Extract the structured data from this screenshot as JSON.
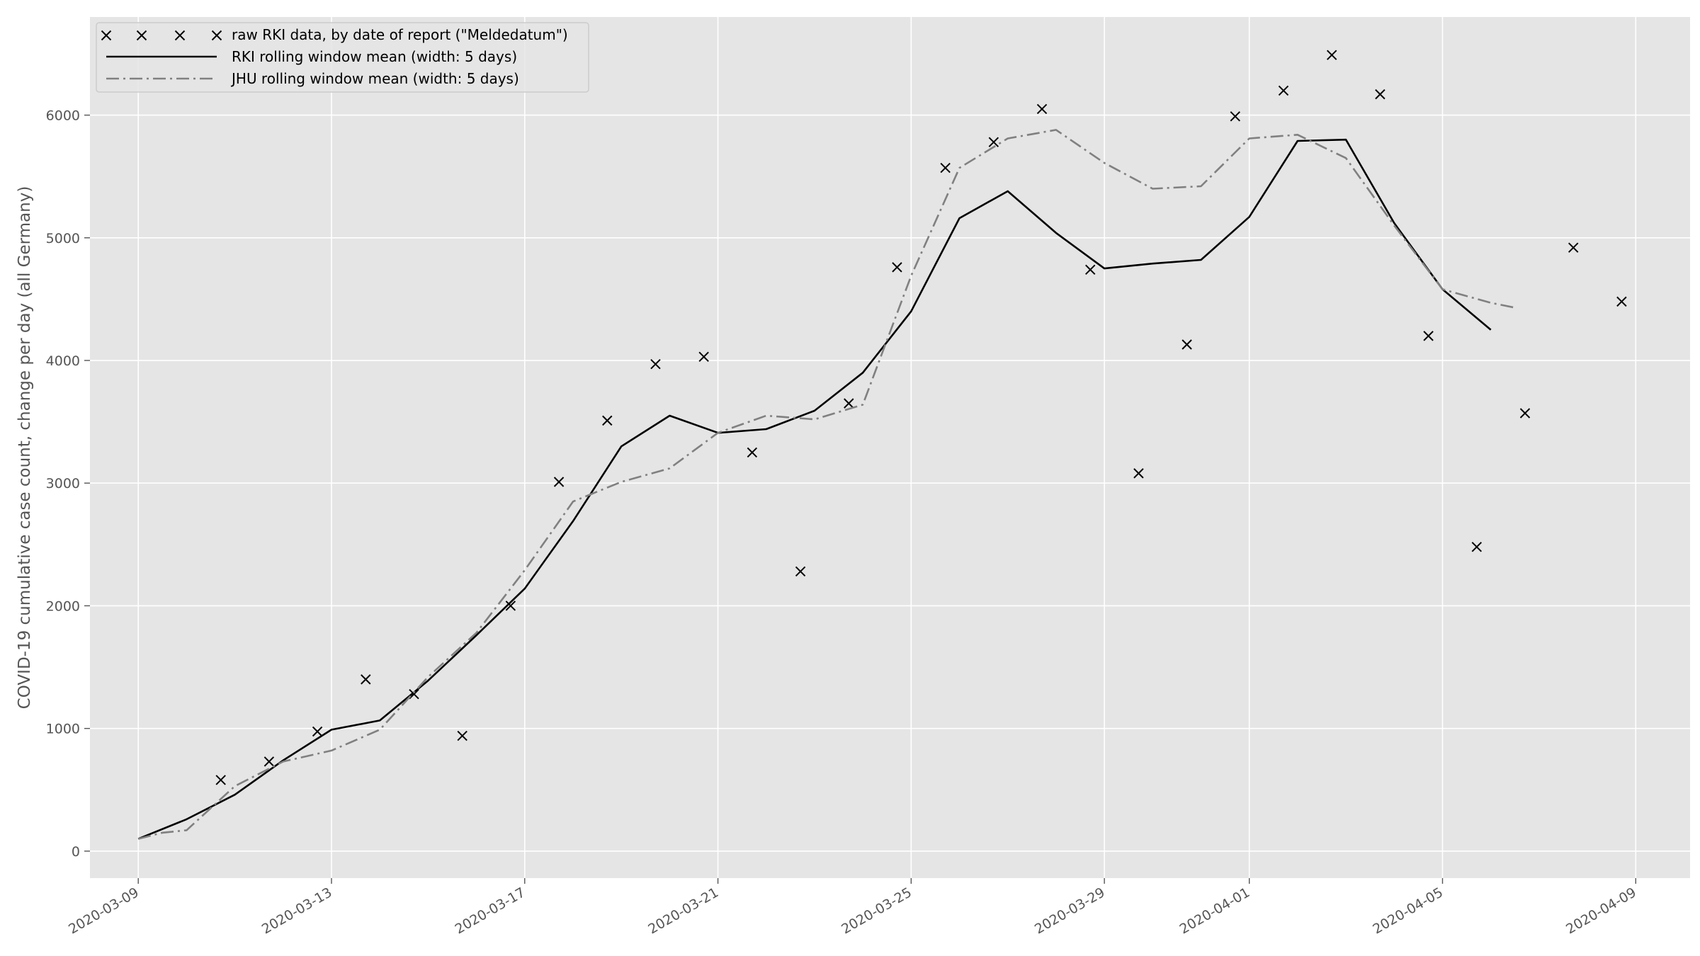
{
  "chart_data": {
    "type": "line",
    "title": "",
    "xlabel": "",
    "ylabel": "COVID-19 cumulative case count, change per day (all Germany)",
    "xlim": [
      "2020-03-08T00:00",
      "2020-04-10T03:00"
    ],
    "ylim": [
      -220,
      6800
    ],
    "grid": true,
    "legend_position": "top-left",
    "x_ticks": [
      "2020-03-09",
      "2020-03-13",
      "2020-03-17",
      "2020-03-21",
      "2020-03-25",
      "2020-03-29",
      "2020-04-01",
      "2020-04-05",
      "2020-04-09"
    ],
    "y_ticks": [
      0,
      1000,
      2000,
      3000,
      4000,
      5000,
      6000
    ],
    "colors": {
      "background": "#e5e5e5",
      "grid": "#ffffff",
      "rki": "#000000",
      "jhu": "#808080",
      "markers": "#000000"
    },
    "series": [
      {
        "name": "raw RKI data, by date of report (\"Meldedatum\")",
        "style": "x-markers",
        "x": [
          "2020-03-10T17:00",
          "2020-03-11T17:00",
          "2020-03-12T17:00",
          "2020-03-13T17:00",
          "2020-03-14T17:00",
          "2020-03-15T17:00",
          "2020-03-16T17:00",
          "2020-03-17T17:00",
          "2020-03-18T17:00",
          "2020-03-19T17:00",
          "2020-03-20T17:00",
          "2020-03-21T17:00",
          "2020-03-22T17:00",
          "2020-03-23T17:00",
          "2020-03-24T17:00",
          "2020-03-25T17:00",
          "2020-03-26T17:00",
          "2020-03-27T17:00",
          "2020-03-28T17:00",
          "2020-03-29T17:00",
          "2020-03-30T17:00",
          "2020-03-31T17:00",
          "2020-04-01T17:00",
          "2020-04-02T17:00",
          "2020-04-03T17:00",
          "2020-04-04T17:00",
          "2020-04-05T17:00",
          "2020-04-06T17:00",
          "2020-04-07T17:00",
          "2020-04-08T17:00"
        ],
        "values": [
          580,
          730,
          975,
          1400,
          1280,
          940,
          2000,
          3010,
          3510,
          3970,
          4030,
          3250,
          2280,
          3650,
          4760,
          5570,
          5780,
          6050,
          4740,
          3080,
          4130,
          5990,
          6200,
          6490,
          6170,
          4200,
          2480,
          3570,
          4920,
          4480
        ]
      },
      {
        "name": "RKI rolling window mean (width: 5 days)",
        "style": "solid",
        "x": [
          "2020-03-09T00:00",
          "2020-03-10T00:00",
          "2020-03-11T00:00",
          "2020-03-12T00:00",
          "2020-03-13T00:00",
          "2020-03-14T00:00",
          "2020-03-15T00:00",
          "2020-03-16T00:00",
          "2020-03-17T00:00",
          "2020-03-18T00:00",
          "2020-03-19T00:00",
          "2020-03-20T00:00",
          "2020-03-21T00:00",
          "2020-03-22T00:00",
          "2020-03-23T00:00",
          "2020-03-24T00:00",
          "2020-03-25T00:00",
          "2020-03-26T00:00",
          "2020-03-27T00:00",
          "2020-03-28T00:00",
          "2020-03-29T00:00",
          "2020-03-30T00:00",
          "2020-03-31T00:00",
          "2020-04-01T00:00",
          "2020-04-02T00:00",
          "2020-04-03T00:00",
          "2020-04-04T00:00",
          "2020-04-05T00:00",
          "2020-04-06T00:00"
        ],
        "values": [
          100,
          260,
          460,
          740,
          990,
          1065,
          1390,
          1760,
          2140,
          2690,
          3300,
          3550,
          3410,
          3440,
          3590,
          3900,
          4400,
          5160,
          5380,
          5040,
          4750,
          4790,
          4820,
          5170,
          5790,
          5800,
          5120,
          4580,
          4250
        ]
      },
      {
        "name": "JHU rolling window mean (width: 5 days)",
        "style": "dash-dot",
        "x": [
          "2020-03-09T00:00",
          "2020-03-09T12:00",
          "2020-03-10T00:00",
          "2020-03-11T00:00",
          "2020-03-12T00:00",
          "2020-03-13T00:00",
          "2020-03-14T00:00",
          "2020-03-15T00:00",
          "2020-03-16T00:00",
          "2020-03-17T00:00",
          "2020-03-18T00:00",
          "2020-03-19T00:00",
          "2020-03-20T00:00",
          "2020-03-21T00:00",
          "2020-03-22T00:00",
          "2020-03-23T00:00",
          "2020-03-24T00:00",
          "2020-03-25T00:00",
          "2020-03-26T00:00",
          "2020-03-27T00:00",
          "2020-03-28T00:00",
          "2020-03-29T00:00",
          "2020-03-30T00:00",
          "2020-03-31T00:00",
          "2020-04-01T00:00",
          "2020-04-02T00:00",
          "2020-04-03T00:00",
          "2020-04-04T00:00",
          "2020-04-05T00:00",
          "2020-04-06T00:00",
          "2020-04-06T12:00"
        ],
        "values": [
          100,
          150,
          170,
          530,
          730,
          820,
          990,
          1420,
          1780,
          2290,
          2850,
          3010,
          3120,
          3410,
          3550,
          3520,
          3640,
          4690,
          5570,
          5810,
          5880,
          5610,
          5400,
          5420,
          5810,
          5840,
          5650,
          5100,
          4580,
          4470,
          4430
        ]
      }
    ]
  }
}
